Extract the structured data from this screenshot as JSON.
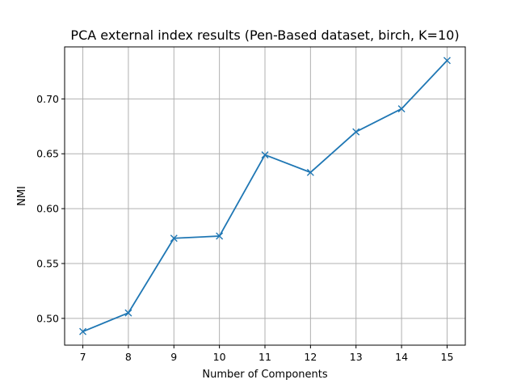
{
  "chart_data": {
    "type": "line",
    "title": "PCA external index results (Pen-Based dataset, birch, K=10)",
    "xlabel": "Number of Components",
    "ylabel": "NMI",
    "x": [
      7,
      8,
      9,
      10,
      11,
      12,
      13,
      14,
      15
    ],
    "series": [
      {
        "values": [
          0.488,
          0.505,
          0.573,
          0.575,
          0.649,
          0.633,
          0.67,
          0.691,
          0.735
        ],
        "color": "#1f77b4",
        "marker": "x"
      }
    ],
    "xticks": [
      "7",
      "8",
      "9",
      "10",
      "11",
      "12",
      "13",
      "14",
      "15"
    ],
    "yticks": [
      "0.50",
      "0.55",
      "0.60",
      "0.65",
      "0.70"
    ],
    "xlim": [
      6.6,
      15.4
    ],
    "ylim": [
      0.4756,
      0.7474
    ],
    "grid": true,
    "grid_color": "#b0b0b0"
  }
}
